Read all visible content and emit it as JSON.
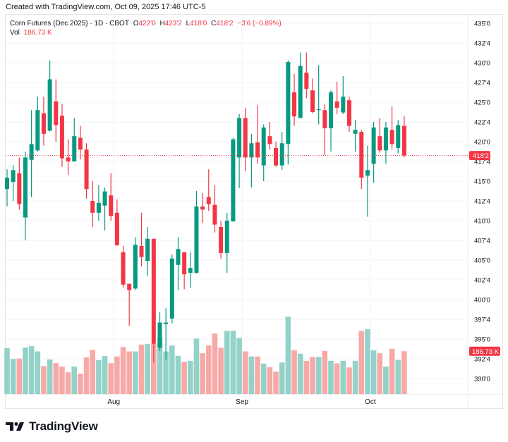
{
  "credit": "Created with TradingView.com, Oct 09, 2025 17:46 UTC-5",
  "legend": {
    "symbol": "Corn Futures (Dec 2025) · 1D · CBOT",
    "o_label": "O",
    "o_value": "422'0",
    "h_label": "H",
    "h_value": "423'2",
    "l_label": "L",
    "l_value": "418'0",
    "c_label": "C",
    "c_value": "418'2",
    "change": "−3'6 (−0.89%)",
    "vol_label": "Vol",
    "vol_value": "186.73 K"
  },
  "logo_text": "TradingView",
  "colors": {
    "up": "#089981",
    "down": "#f23645",
    "up_vol": "#92d2c9",
    "down_vol": "#f7a9a7",
    "grid": "#f0f3fa"
  },
  "chart_data": {
    "type": "candlestick",
    "title": "Corn Futures (Dec 2025) · 1D · CBOT",
    "ylim": [
      388.5,
      436
    ],
    "price_ticks": [
      {
        "value": 435,
        "label": "435'0"
      },
      {
        "value": 432.5,
        "label": "432'4"
      },
      {
        "value": 430,
        "label": "430'0"
      },
      {
        "value": 427.5,
        "label": "427'4"
      },
      {
        "value": 425,
        "label": "425'0"
      },
      {
        "value": 422.5,
        "label": "422'4"
      },
      {
        "value": 420,
        "label": "420'0"
      },
      {
        "value": 417.5,
        "label": "417'4"
      },
      {
        "value": 415,
        "label": "415'0"
      },
      {
        "value": 412.5,
        "label": "412'4"
      },
      {
        "value": 410,
        "label": "410'0"
      },
      {
        "value": 407.5,
        "label": "407'4"
      },
      {
        "value": 405,
        "label": "405'0"
      },
      {
        "value": 402.5,
        "label": "402'4"
      },
      {
        "value": 400,
        "label": "400'0"
      },
      {
        "value": 397.5,
        "label": "397'4"
      },
      {
        "value": 395,
        "label": "395'0"
      },
      {
        "value": 392.5,
        "label": "392'4"
      },
      {
        "value": 390,
        "label": "390'0"
      }
    ],
    "time_ticks": [
      {
        "index": 17,
        "label": "Aug"
      },
      {
        "index": 38,
        "label": "Sep"
      },
      {
        "index": 59,
        "label": "Oct"
      }
    ],
    "last_price": {
      "value": 418.25,
      "label": "418'2"
    },
    "last_volume": {
      "value": 186.73,
      "label": "186.73 K"
    },
    "volume_unit": "K",
    "ohlc": [
      [
        414.0,
        416.5,
        411.8,
        415.45
      ],
      [
        414.9,
        417.05,
        412.5,
        416.4
      ],
      [
        416.0,
        418.0,
        411.4,
        412.1
      ],
      [
        410.4,
        418.75,
        407.5,
        418.0
      ],
      [
        417.7,
        424.0,
        413.0,
        419.7
      ],
      [
        418.9,
        425.7,
        418.75,
        424.0
      ],
      [
        423.6,
        425.7,
        419.5,
        421.0
      ],
      [
        421.4,
        430.3,
        421.3,
        427.9
      ],
      [
        425.1,
        427.9,
        420.0,
        422.1
      ],
      [
        423.3,
        424.8,
        416.8,
        417.9
      ],
      [
        418.0,
        420.3,
        415.8,
        417.5
      ],
      [
        417.5,
        423.0,
        417.5,
        420.7
      ],
      [
        420.5,
        422.0,
        417.75,
        419.0
      ],
      [
        419.0,
        419.8,
        412.8,
        414.0
      ],
      [
        412.5,
        415.0,
        409.2,
        411.0
      ],
      [
        411.0,
        414.5,
        410.0,
        412.25
      ],
      [
        411.9,
        414.2,
        408.75,
        413.7
      ],
      [
        413.2,
        416.0,
        410.0,
        410.6
      ],
      [
        411.0,
        412.7,
        406.8,
        406.9
      ],
      [
        406.0,
        406.8,
        401.5,
        401.9
      ],
      [
        402.0,
        402.0,
        396.7,
        401.2
      ],
      [
        401.4,
        407.9,
        401.2,
        406.95
      ],
      [
        406.8,
        411.0,
        404.2,
        405.4
      ],
      [
        404.9,
        409.2,
        403.0,
        407.7
      ],
      [
        407.7,
        407.7,
        392.0,
        394.4
      ],
      [
        393.9,
        398.4,
        393.5,
        397.1
      ],
      [
        396.9,
        398.9,
        392.4,
        397.1
      ],
      [
        397.6,
        405.7,
        397.0,
        405.2
      ],
      [
        404.4,
        407.9,
        401.2,
        406.4
      ],
      [
        406.0,
        406.0,
        401.3,
        403.2
      ],
      [
        403.4,
        406.0,
        401.5,
        404.0
      ],
      [
        403.4,
        413.75,
        403.3,
        411.8
      ],
      [
        411.8,
        413.5,
        409.7,
        411.4
      ],
      [
        413.0,
        416.5,
        411.25,
        412.1
      ],
      [
        412.0,
        414.5,
        408.5,
        409.5
      ],
      [
        409.2,
        410.0,
        405.2,
        405.9
      ],
      [
        405.9,
        411.0,
        403.4,
        410.0
      ],
      [
        409.9,
        420.5,
        409.9,
        420.3
      ],
      [
        418.0,
        423.5,
        414.1,
        423.0
      ],
      [
        423.0,
        424.3,
        416.3,
        418.0
      ],
      [
        418.0,
        421.0,
        414.2,
        419.8
      ],
      [
        419.9,
        424.6,
        417.2,
        418.0
      ],
      [
        417.0,
        422.2,
        415.0,
        421.8
      ],
      [
        420.7,
        422.5,
        419.0,
        419.7
      ],
      [
        419.2,
        420.0,
        416.8,
        417.0
      ],
      [
        417.0,
        421.25,
        416.4,
        419.8
      ],
      [
        419.7,
        430.3,
        417.1,
        430.1
      ],
      [
        426.25,
        428.6,
        422.0,
        423.2
      ],
      [
        423.0,
        431.3,
        423.0,
        429.6
      ],
      [
        428.75,
        431.3,
        425.5,
        426.7
      ],
      [
        426.5,
        428.0,
        423.6,
        423.75
      ],
      [
        424.0,
        429.7,
        422.2,
        424.1
      ],
      [
        424.0,
        424.8,
        418.3,
        421.7
      ],
      [
        421.7,
        426.5,
        418.75,
        426.25
      ],
      [
        425.1,
        427.6,
        423.5,
        424.3
      ],
      [
        423.7,
        428.3,
        423.5,
        425.7
      ],
      [
        425.25,
        425.7,
        421.25,
        422.0
      ],
      [
        421.0,
        422.75,
        418.75,
        421.5
      ],
      [
        421.25,
        421.5,
        414.0,
        415.45
      ],
      [
        415.7,
        419.5,
        410.5,
        416.4
      ],
      [
        417.2,
        422.5,
        414.8,
        421.8
      ],
      [
        420.7,
        423.0,
        418.6,
        418.9
      ],
      [
        418.9,
        422.5,
        417.2,
        421.8
      ],
      [
        421.5,
        424.5,
        419.0,
        419.7
      ],
      [
        419.2,
        422.75,
        418.5,
        422.1
      ],
      [
        422.0,
        423.25,
        418.0,
        418.25
      ]
    ],
    "volume": [
      200,
      153,
      155,
      203,
      209,
      186,
      122,
      151,
      135,
      120,
      95,
      120,
      89,
      160,
      193,
      148,
      166,
      135,
      164,
      205,
      186,
      186,
      216,
      218,
      220,
      246,
      186,
      212,
      167,
      141,
      145,
      242,
      178,
      212,
      264,
      202,
      276,
      276,
      245,
      186,
      164,
      164,
      133,
      117,
      98,
      138,
      338,
      191,
      176,
      145,
      162,
      162,
      188,
      145,
      134,
      145,
      116,
      145,
      276,
      283,
      191,
      178,
      120,
      198,
      149,
      186.73
    ]
  }
}
